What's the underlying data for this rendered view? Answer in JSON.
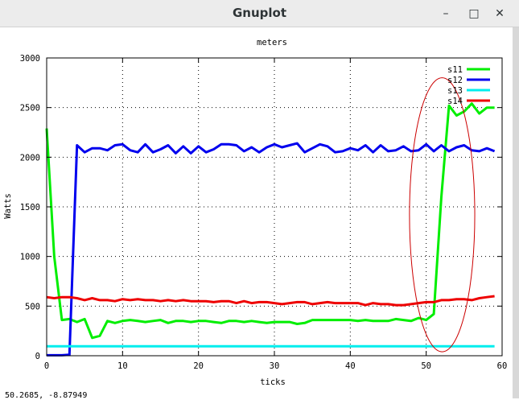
{
  "window": {
    "title": "Gnuplot",
    "controls": {
      "minimize": "–",
      "maximize": "□",
      "close": "✕"
    }
  },
  "status_bar": {
    "coordinates": "50.2685, -8.87949"
  },
  "chart_data": {
    "type": "line",
    "title": "meters",
    "xlabel": "ticks",
    "ylabel": "Watts",
    "xlim": [
      0,
      60
    ],
    "ylim": [
      0,
      3000
    ],
    "xticks": [
      0,
      10,
      20,
      30,
      40,
      50,
      60
    ],
    "yticks": [
      0,
      500,
      1000,
      1500,
      2000,
      2500,
      3000
    ],
    "grid": true,
    "legend_position": "top-right",
    "x": [
      0,
      1,
      2,
      3,
      4,
      5,
      6,
      7,
      8,
      9,
      10,
      11,
      12,
      13,
      14,
      15,
      16,
      17,
      18,
      19,
      20,
      21,
      22,
      23,
      24,
      25,
      26,
      27,
      28,
      29,
      30,
      31,
      32,
      33,
      34,
      35,
      36,
      37,
      38,
      39,
      40,
      41,
      42,
      43,
      44,
      45,
      46,
      47,
      48,
      49,
      50,
      51,
      52,
      53,
      54,
      55,
      56,
      57,
      58,
      59
    ],
    "series": [
      {
        "name": "s11",
        "color": "#00ee00",
        "values": [
          2290,
          1000,
          360,
          370,
          340,
          370,
          180,
          200,
          350,
          330,
          350,
          360,
          350,
          340,
          350,
          360,
          330,
          350,
          350,
          340,
          350,
          350,
          340,
          330,
          350,
          350,
          340,
          350,
          340,
          330,
          340,
          340,
          340,
          320,
          330,
          360,
          360,
          360,
          360,
          360,
          360,
          350,
          360,
          350,
          350,
          350,
          370,
          360,
          350,
          380,
          360,
          420,
          1600,
          2520,
          2420,
          2460,
          2540,
          2440,
          2500,
          2500
        ]
      },
      {
        "name": "s12",
        "color": "#0000ee",
        "values": [
          5,
          5,
          5,
          10,
          2120,
          2050,
          2090,
          2090,
          2070,
          2120,
          2130,
          2070,
          2050,
          2130,
          2050,
          2080,
          2120,
          2040,
          2110,
          2040,
          2110,
          2050,
          2080,
          2130,
          2130,
          2120,
          2060,
          2100,
          2050,
          2100,
          2130,
          2100,
          2120,
          2140,
          2050,
          2090,
          2130,
          2110,
          2050,
          2060,
          2090,
          2070,
          2120,
          2050,
          2120,
          2060,
          2070,
          2110,
          2060,
          2070,
          2130,
          2060,
          2120,
          2060,
          2100,
          2120,
          2070,
          2060,
          2090,
          2060
        ]
      },
      {
        "name": "s13",
        "color": "#00eeee",
        "values": [
          95,
          95,
          95,
          95,
          95,
          95,
          95,
          95,
          95,
          95,
          95,
          95,
          95,
          95,
          95,
          95,
          95,
          95,
          95,
          95,
          95,
          95,
          95,
          95,
          95,
          95,
          95,
          95,
          95,
          95,
          95,
          95,
          95,
          95,
          95,
          95,
          95,
          95,
          95,
          95,
          95,
          95,
          95,
          95,
          95,
          95,
          95,
          95,
          95,
          95,
          95,
          95,
          95,
          95,
          95,
          95,
          95,
          95,
          95,
          95
        ]
      },
      {
        "name": "s14",
        "color": "#ee0000",
        "values": [
          590,
          580,
          590,
          590,
          580,
          560,
          580,
          560,
          560,
          550,
          570,
          560,
          570,
          560,
          560,
          550,
          560,
          550,
          560,
          550,
          550,
          550,
          540,
          550,
          550,
          530,
          550,
          530,
          540,
          540,
          530,
          520,
          530,
          540,
          540,
          520,
          530,
          540,
          530,
          530,
          530,
          530,
          510,
          530,
          520,
          520,
          510,
          510,
          520,
          530,
          540,
          540,
          560,
          560,
          570,
          570,
          560,
          580,
          590,
          600
        ]
      }
    ],
    "annotations": [
      {
        "type": "ellipse",
        "color": "#cc0000",
        "center_x": 52.1,
        "center_y": 1420,
        "radius_x": 4.3,
        "radius_y": 1380
      }
    ]
  }
}
